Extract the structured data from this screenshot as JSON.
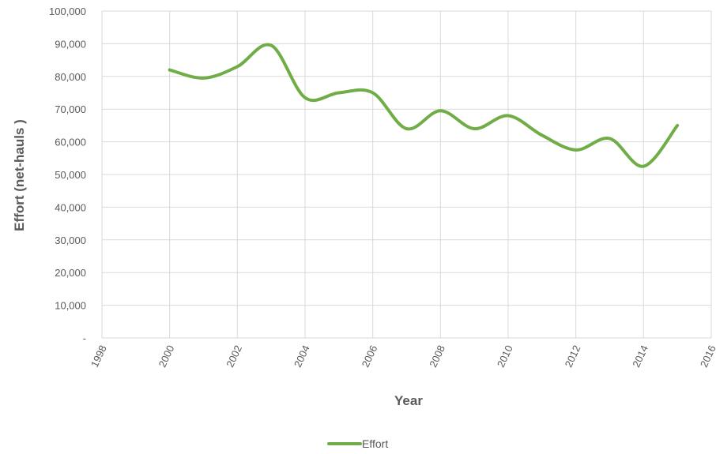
{
  "chart_data": {
    "type": "line",
    "title": "",
    "xlabel": "Year",
    "ylabel": "Effort (net-hauls )",
    "xlim": [
      1998,
      2016
    ],
    "ylim": [
      0,
      100000
    ],
    "x_ticks": [
      "1998",
      "2000",
      "2002",
      "2004",
      "2006",
      "2008",
      "2010",
      "2012",
      "2014",
      "2016"
    ],
    "y_ticks": [
      "-",
      "10,000",
      "20,000",
      "30,000",
      "40,000",
      "50,000",
      "60,000",
      "70,000",
      "80,000",
      "90,000",
      "100,000"
    ],
    "grid": true,
    "legend_position": "bottom",
    "series": [
      {
        "name": "Effort",
        "color": "#70ad47",
        "x": [
          2000,
          2001,
          2002,
          2003,
          2004,
          2005,
          2006,
          2007,
          2008,
          2009,
          2010,
          2011,
          2012,
          2013,
          2014,
          2015
        ],
        "values": [
          82000,
          79500,
          83000,
          89500,
          73500,
          75000,
          75000,
          64000,
          69500,
          64000,
          68000,
          62000,
          57500,
          61000,
          52500,
          65000
        ]
      }
    ]
  }
}
